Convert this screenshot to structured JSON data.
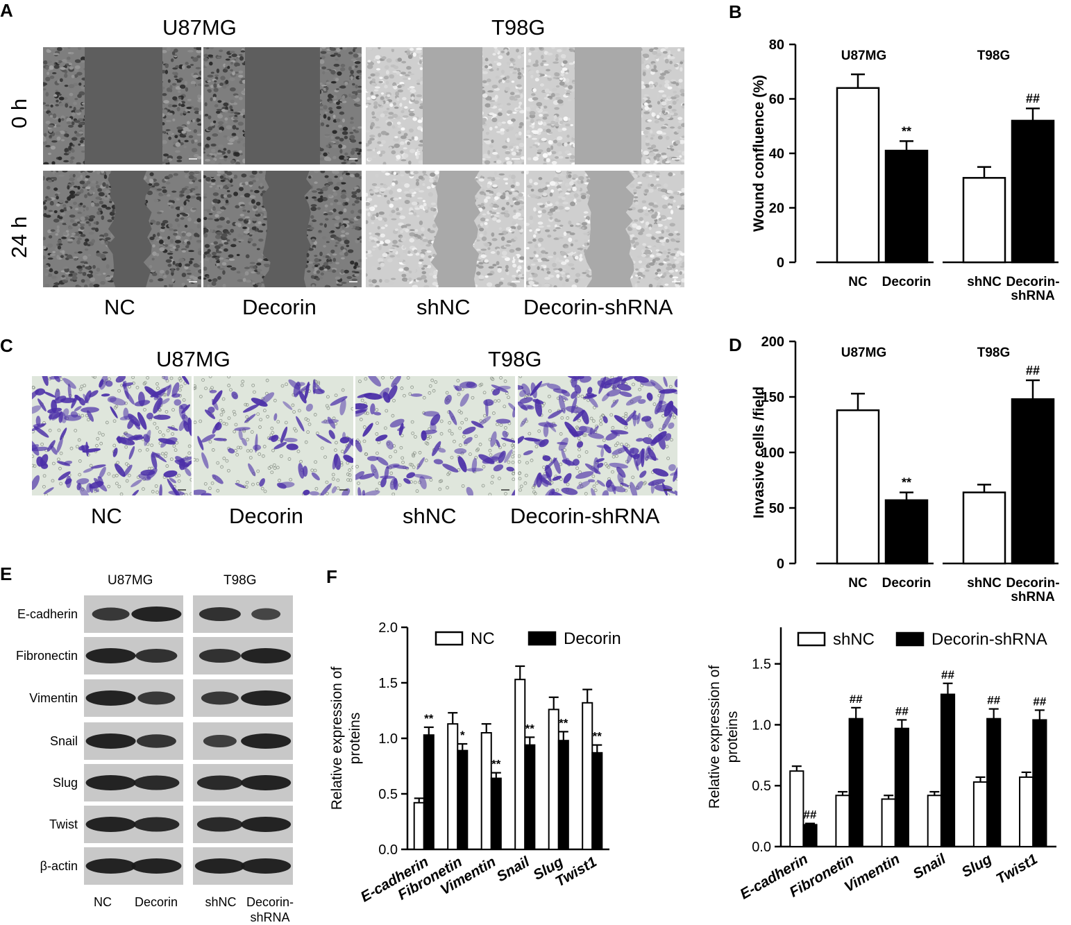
{
  "panel_a": {
    "letter": "A",
    "cell_lines": [
      "U87MG",
      "T98G"
    ],
    "time_labels": [
      "0 h",
      "24 h"
    ],
    "groups": [
      "NC",
      "Decorin",
      "shNC",
      "Decorin-shRNA"
    ]
  },
  "panel_c": {
    "letter": "C",
    "cell_lines": [
      "U87MG",
      "T98G"
    ],
    "groups": [
      "NC",
      "Decorin",
      "shNC",
      "Decorin-shRNA"
    ]
  },
  "panel_e": {
    "letter": "E",
    "cell_lines": [
      "U87MG",
      "T98G"
    ],
    "proteins": [
      "E-cadherin",
      "Fibronectin",
      "Vimentin",
      "Snail",
      "Slug",
      "Twist",
      "β-actin"
    ],
    "lanes": [
      "NC",
      "Decorin",
      "shNC",
      "Decorin-\nshRNA"
    ]
  },
  "colors": {
    "open_bar": "#ffffff",
    "filled_bar": "#000000",
    "violet_stain": "#4b2fa8",
    "phase_gray": "#8a8a8a"
  },
  "chart_data": [
    {
      "panel": "B",
      "type": "bar",
      "ylabel": "Wound confluence (%)",
      "ylim": [
        0,
        80
      ],
      "yticks": [
        0,
        20,
        40,
        60,
        80
      ],
      "groups": [
        {
          "title": "U87MG",
          "bars": [
            {
              "label": "NC",
              "value": 64,
              "error": 5,
              "fill": "open",
              "mark": ""
            },
            {
              "label": "Decorin",
              "value": 41,
              "error": 3.5,
              "fill": "filled",
              "mark": "**"
            }
          ]
        },
        {
          "title": "T98G",
          "bars": [
            {
              "label": "shNC",
              "value": 31,
              "error": 4,
              "fill": "open",
              "mark": ""
            },
            {
              "label": "Decorin-\nshRNA",
              "value": 52,
              "error": 4.5,
              "fill": "filled",
              "mark": "##"
            }
          ]
        }
      ]
    },
    {
      "panel": "D",
      "type": "bar",
      "ylabel": "Invasive cells /field",
      "ylim": [
        0,
        200
      ],
      "yticks": [
        0,
        50,
        100,
        150,
        200
      ],
      "groups": [
        {
          "title": "U87MG",
          "bars": [
            {
              "label": "NC",
              "value": 138,
              "error": 15,
              "fill": "open",
              "mark": ""
            },
            {
              "label": "Decorin",
              "value": 57,
              "error": 7,
              "fill": "filled",
              "mark": "**"
            }
          ]
        },
        {
          "title": "T98G",
          "bars": [
            {
              "label": "shNC",
              "value": 64,
              "error": 7,
              "fill": "open",
              "mark": ""
            },
            {
              "label": "Decorin-\nshRNA",
              "value": 148,
              "error": 17,
              "fill": "filled",
              "mark": "##"
            }
          ]
        }
      ]
    },
    {
      "panel": "F-left",
      "type": "bar",
      "ylabel": "Relative expression of\nproteins",
      "ylim": [
        0,
        2.0
      ],
      "yticks": [
        "0.0",
        "0.5",
        "1.0",
        "1.5",
        "2.0"
      ],
      "categories": [
        "E-cadherin",
        "Fibronetin",
        "Vimentin",
        "Snail",
        "Slug",
        "Twist1"
      ],
      "series": [
        {
          "name": "NC",
          "fill": "open",
          "values": [
            0.42,
            1.13,
            1.05,
            1.53,
            1.26,
            1.32
          ],
          "errors": [
            0.04,
            0.1,
            0.08,
            0.12,
            0.11,
            0.12
          ],
          "marks": [
            "",
            "",
            "",
            "",
            "",
            ""
          ]
        },
        {
          "name": "Decorin",
          "fill": "filled",
          "values": [
            1.03,
            0.89,
            0.64,
            0.94,
            0.98,
            0.87
          ],
          "errors": [
            0.07,
            0.06,
            0.05,
            0.07,
            0.08,
            0.07
          ],
          "marks": [
            "**",
            "*",
            "**",
            "**",
            "**",
            "**"
          ]
        }
      ]
    },
    {
      "panel": "F-right",
      "type": "bar",
      "ylabel": "Relative expression of\nproteins",
      "ylim": [
        0,
        1.8
      ],
      "yticks": [
        "0.0",
        "0.5",
        "1.0",
        "1.5"
      ],
      "categories": [
        "E-cadherin",
        "Fibronetin",
        "Vimentin",
        "Snail",
        "Slug",
        "Twist1"
      ],
      "series": [
        {
          "name": "shNC",
          "fill": "open",
          "values": [
            0.62,
            0.42,
            0.39,
            0.42,
            0.53,
            0.57
          ],
          "errors": [
            0.04,
            0.03,
            0.03,
            0.03,
            0.04,
            0.04
          ],
          "marks": [
            "",
            "",
            "",
            "",
            "",
            ""
          ]
        },
        {
          "name": "Decorin-shRNA",
          "fill": "filled",
          "values": [
            0.18,
            1.05,
            0.97,
            1.25,
            1.05,
            1.04
          ],
          "errors": [
            0.01,
            0.09,
            0.07,
            0.09,
            0.08,
            0.08
          ],
          "marks": [
            "##",
            "##",
            "##",
            "##",
            "##",
            "##"
          ]
        }
      ]
    }
  ]
}
